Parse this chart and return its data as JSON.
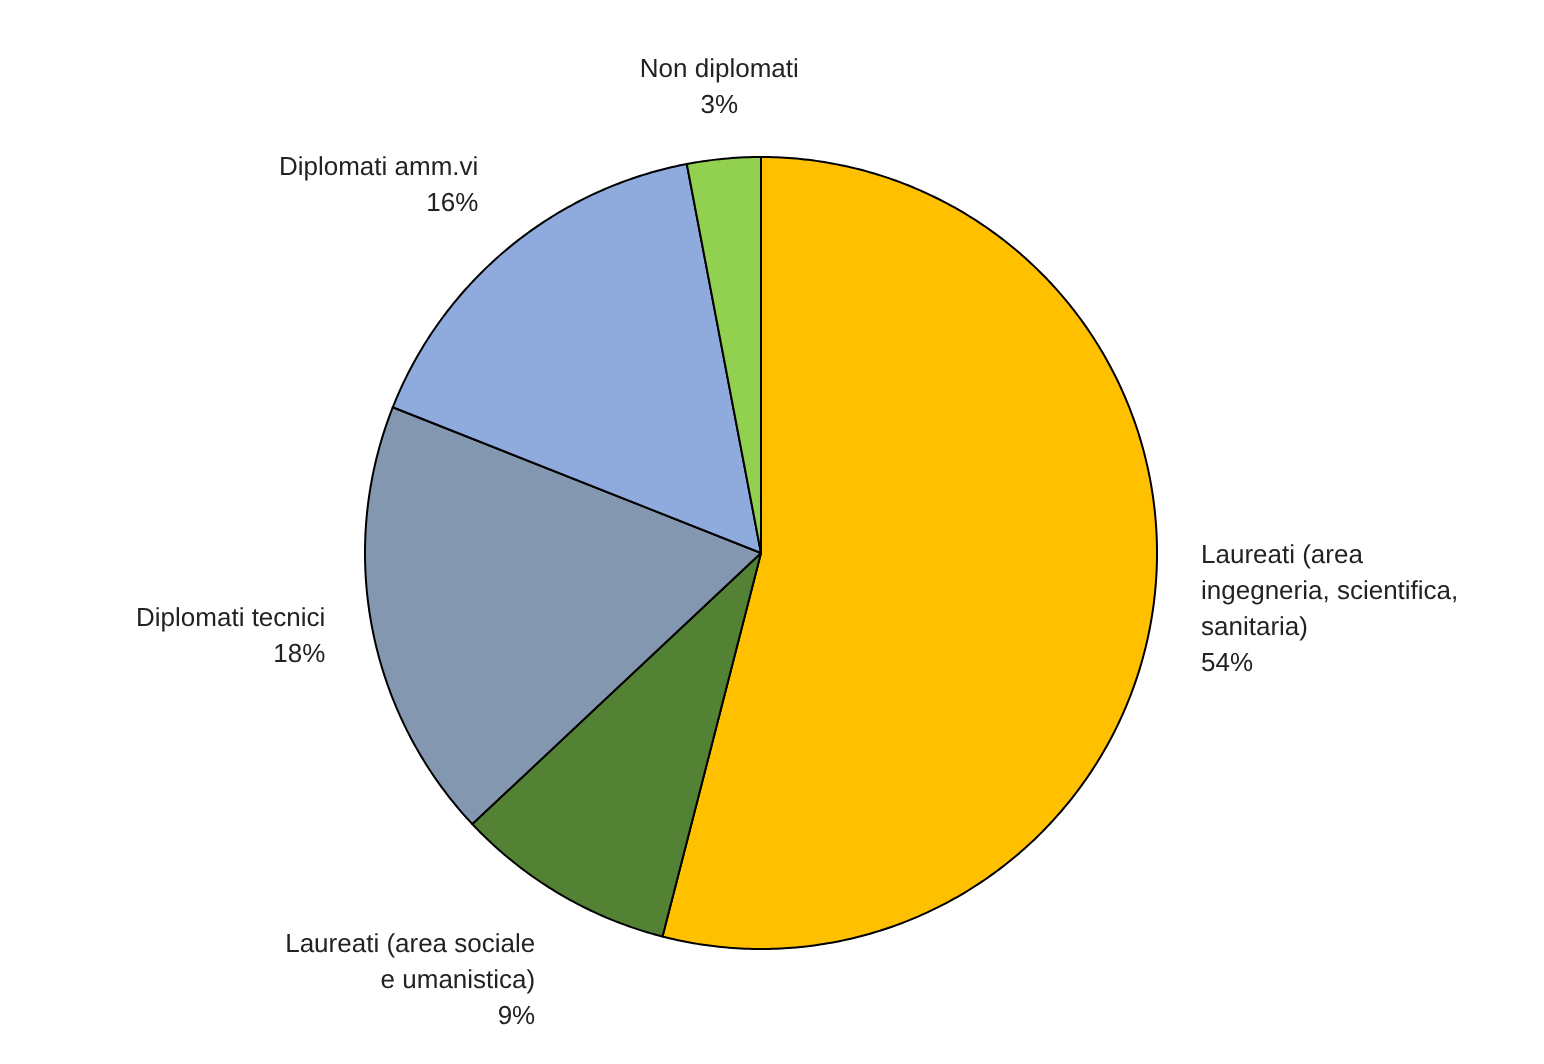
{
  "chart_data": {
    "type": "pie",
    "categories": [
      "Laureati (area\ningegneria, scientifica,\nsanitaria)",
      "Laureati (area sociale\ne umanistica)",
      "Diplomati tecnici",
      "Diplomati amm.vi",
      "Non diplomati"
    ],
    "values": [
      54,
      9,
      18,
      16,
      3
    ],
    "colors": [
      "#ffc000",
      "#548235",
      "#8497b0",
      "#8faadc",
      "#92d050"
    ],
    "value_labels": [
      "54%",
      "9%",
      "18%",
      "16%",
      "3%"
    ]
  }
}
